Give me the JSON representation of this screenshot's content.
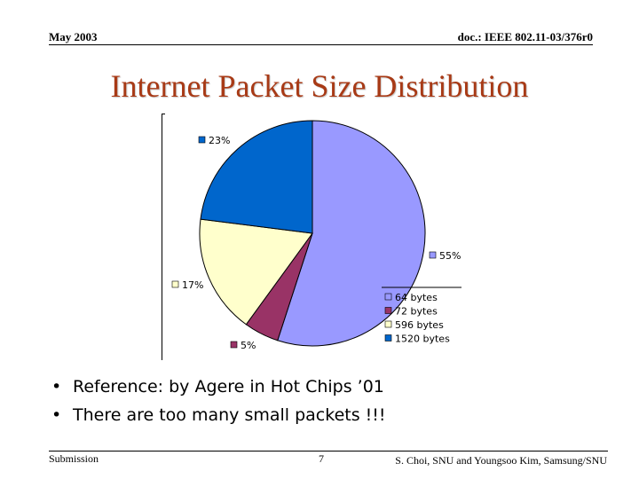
{
  "header": {
    "date": "May 2003",
    "doc_id": "doc.: IEEE 802.11-03/376r0"
  },
  "slide": {
    "title": "Internet Packet Size Distribution",
    "bullets": [
      "Reference: by Agere in Hot Chips ’01",
      "There are too many small packets !!!"
    ]
  },
  "footer": {
    "left": "Submission",
    "page": "7",
    "right": "S. Choi, SNU and Youngsoo Kim, Samsung/SNU"
  },
  "chart_data": {
    "type": "pie",
    "title": "",
    "series": [
      {
        "categories": [
          "64 bytes",
          "72 bytes",
          "596 bytes",
          "1520 bytes"
        ],
        "values": [
          55,
          5,
          17,
          23
        ],
        "labels": [
          "55%",
          "5%",
          "17%",
          "23%"
        ],
        "colors": [
          "#9999ff",
          "#993366",
          "#ffffcc",
          "#0066cc"
        ]
      }
    ],
    "legend": "bottom-right"
  }
}
